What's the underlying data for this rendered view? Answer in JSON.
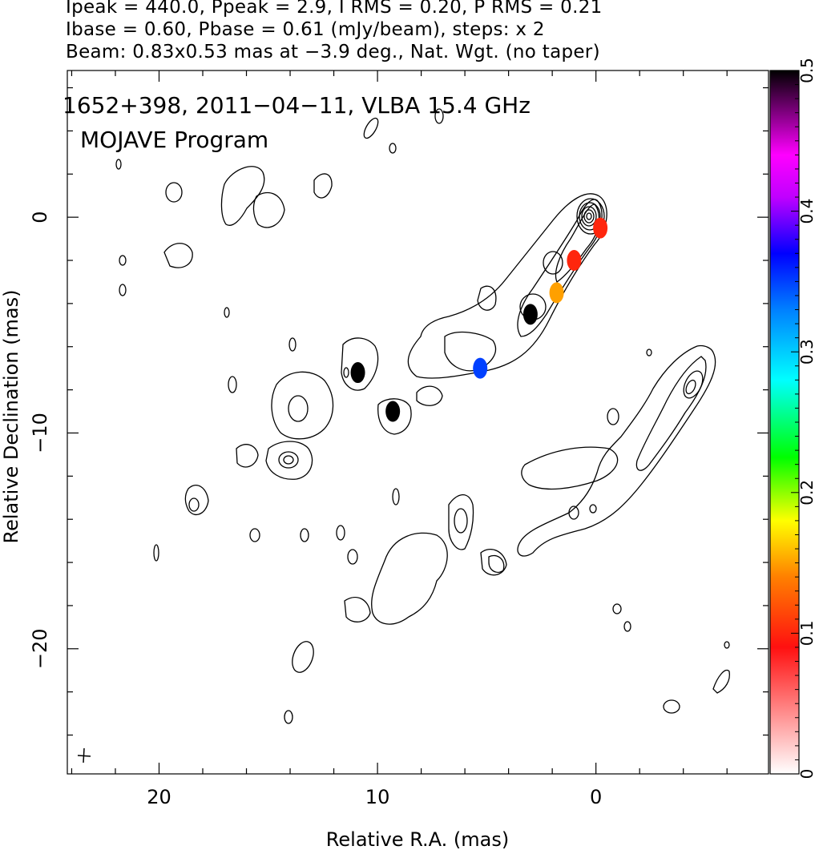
{
  "header": {
    "line1": "Ipeak = 440.0, Ppeak = 2.9, I RMS = 0.20, P RMS = 0.21",
    "line2": "Ibase = 0.60, Pbase = 0.61 (mJy/beam), steps: x 2",
    "line3": "Beam: 0.83x0.53 mas at −3.9 deg., Nat. Wgt. (no taper)"
  },
  "plot": {
    "source_label": "1652+398, 2011−04−11, VLBA 15.4 GHz",
    "program_label": "MOJAVE Program"
  },
  "chart_data": {
    "type": "contour",
    "xlabel": "Relative R.A. (mas)",
    "ylabel": "Relative Declination (mas)",
    "xlim": [
      24.2,
      -7.9
    ],
    "ylim": [
      -25.8,
      6.8
    ],
    "x_ticks": [
      20,
      10,
      0
    ],
    "x_tick_labels": [
      "20",
      "10",
      "0"
    ],
    "y_ticks": [
      0,
      -10,
      -20
    ],
    "y_tick_labels": [
      "0",
      "−10",
      "−20"
    ],
    "colorbar": {
      "min": 0,
      "max": 0.5,
      "ticks": [
        0,
        0.1,
        0.2,
        0.3,
        0.4,
        0.5
      ],
      "tick_labels": [
        "0",
        "0.1",
        "0.2",
        "0.3",
        "0.4",
        "0.5"
      ]
    },
    "core": {
      "ra": 0.0,
      "dec": 0.0
    },
    "polarized_emission": [
      {
        "ra": -0.2,
        "dec": -0.5,
        "value": 0.1
      },
      {
        "ra": 1.0,
        "dec": -2.0,
        "value": 0.1
      },
      {
        "ra": 1.8,
        "dec": -3.5,
        "value": 0.15
      },
      {
        "ra": 3.0,
        "dec": -4.5,
        "value": 0.5
      },
      {
        "ra": 5.3,
        "dec": -7.0,
        "value": 0.35
      },
      {
        "ra": 10.9,
        "dec": -7.2,
        "value": 0.5
      },
      {
        "ra": 9.3,
        "dec": -9.0,
        "value": 0.5
      }
    ]
  }
}
